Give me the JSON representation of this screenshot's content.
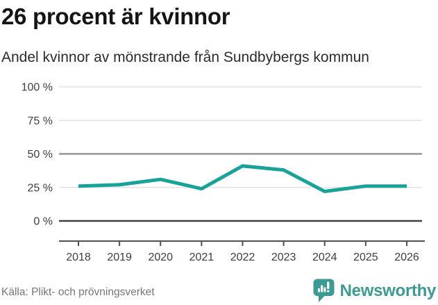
{
  "header": {
    "title": "26 procent är kvinnor",
    "subtitle": "Andel kvinnor av mönstrande från Sundbybergs kommun"
  },
  "chart_data": {
    "type": "line",
    "title": "26 procent är kvinnor",
    "subtitle": "Andel kvinnor av mönstrande från Sundbybergs kommun",
    "x": [
      2018,
      2019,
      2020,
      2021,
      2022,
      2023,
      2024,
      2025,
      2026
    ],
    "series": [
      {
        "name": "Andel kvinnor av mönstrande",
        "values": [
          26,
          27,
          31,
          24,
          41,
          38,
          22,
          26,
          26
        ]
      }
    ],
    "xlabel": "",
    "ylabel": "",
    "ylim": [
      0,
      100
    ],
    "yticks": [
      0,
      25,
      50,
      75,
      100
    ],
    "ytick_suffix": " %",
    "grid": true,
    "benchmark_gridline": 50,
    "legend_position": "none",
    "line_color": "#17a398"
  },
  "footer": {
    "source": "Källa: Plikt- och prövningsverket",
    "brand_name": "Newsworthy",
    "brand_color": "#3b9a94"
  },
  "colors": {
    "title": "#151515",
    "subtitle": "#2b2b2b",
    "tick_text": "#3d3d3d",
    "grid_light": "#e3e3e3",
    "grid_mid": "#8a8a8a",
    "grid_dark": "#3f3f3f",
    "axis": "#4f4f4f"
  }
}
